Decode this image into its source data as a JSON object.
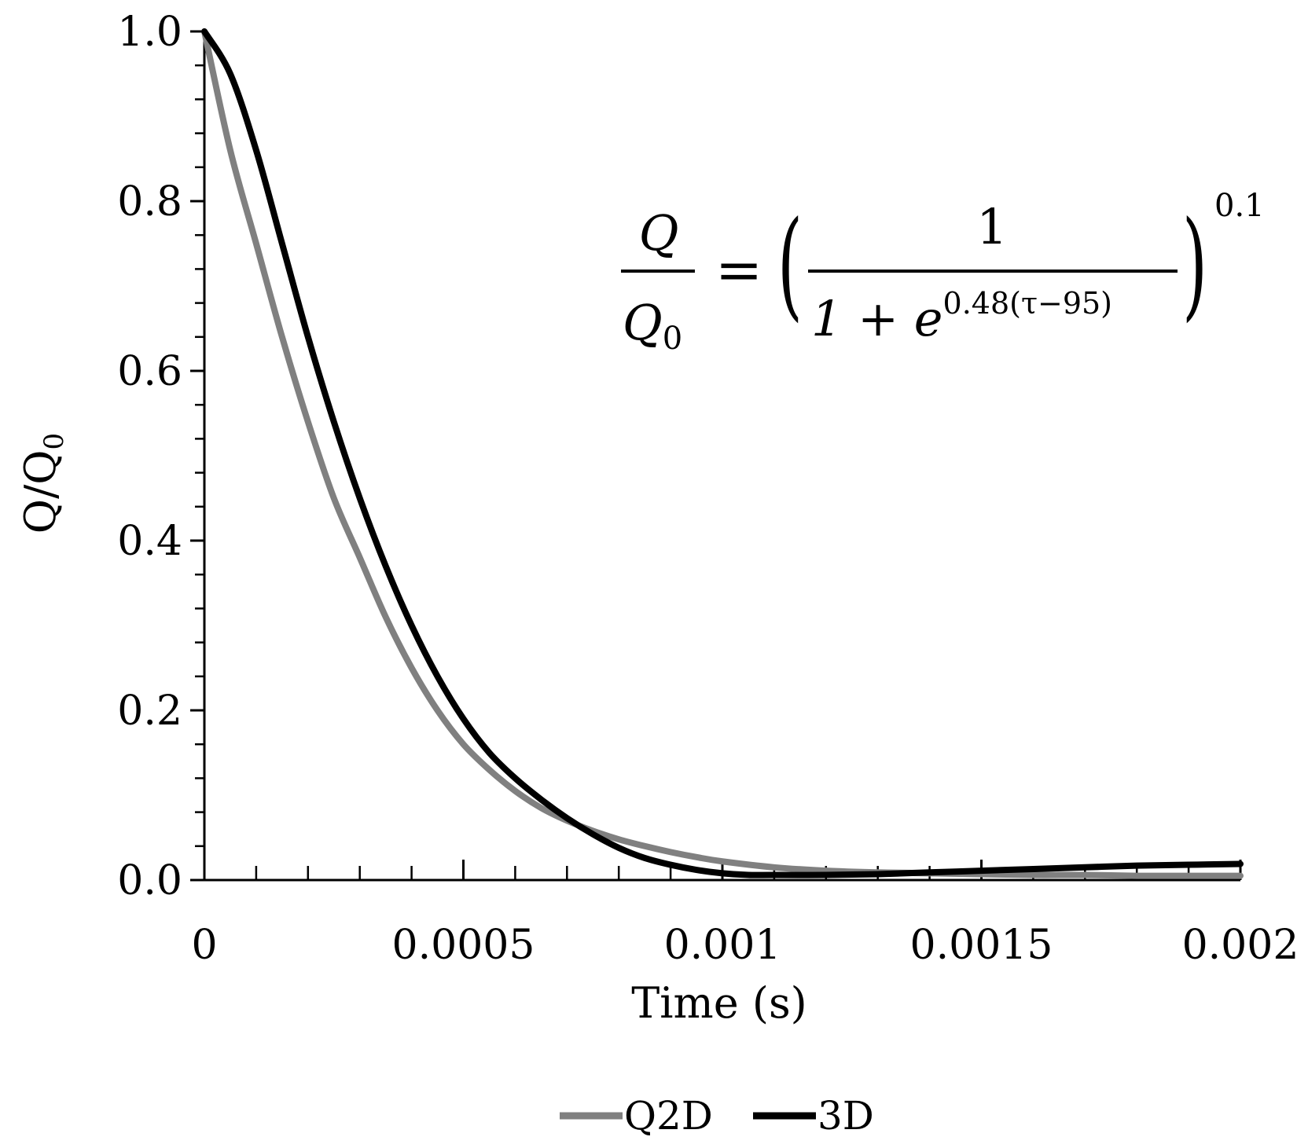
{
  "chart_data": {
    "type": "line",
    "xlabel": "Time (s)",
    "ylabel": "Q/Q",
    "ylabel_sub": "0",
    "xlim": [
      0,
      0.002
    ],
    "ylim": [
      0,
      1.0
    ],
    "x_ticks": [
      0,
      0.0005,
      0.001,
      0.0015,
      0.002
    ],
    "x_tick_labels": [
      "0",
      "0.0005",
      "0.001",
      "0.0015",
      "0.002"
    ],
    "y_ticks": [
      0,
      0.2,
      0.4,
      0.6,
      0.8,
      1.0
    ],
    "y_tick_labels": [
      "0.0",
      "0.2",
      "0.4",
      "0.6",
      "0.8",
      "1.0"
    ],
    "grid": false,
    "legend_position": "bottom",
    "equation": {
      "lhs_num": "Q",
      "lhs_den": "Q",
      "lhs_den_sub": "0",
      "equals": "=",
      "rhs_num": "1",
      "rhs_den_base": "1 + e",
      "rhs_den_exp": "0.48(τ−95)",
      "power": "0.1"
    },
    "series": [
      {
        "name": "Q2D",
        "color": "#808080",
        "x": [
          0,
          5e-05,
          0.0001,
          0.00015,
          0.0002,
          0.00025,
          0.0003,
          0.00035,
          0.0004,
          0.00045,
          0.0005,
          0.00055,
          0.0006,
          0.00065,
          0.0007,
          0.00075,
          0.0008,
          0.00085,
          0.0009,
          0.00095,
          0.001,
          0.0011,
          0.0012,
          0.0013,
          0.0014,
          0.0015,
          0.0016,
          0.0017,
          0.0018,
          0.0019,
          0.002
        ],
        "y": [
          1.0,
          0.86,
          0.75,
          0.64,
          0.54,
          0.45,
          0.38,
          0.31,
          0.25,
          0.2,
          0.16,
          0.13,
          0.105,
          0.085,
          0.07,
          0.058,
          0.048,
          0.04,
          0.033,
          0.027,
          0.022,
          0.015,
          0.011,
          0.009,
          0.008,
          0.007,
          0.006,
          0.006,
          0.005,
          0.005,
          0.005
        ]
      },
      {
        "name": "3D",
        "color": "#000000",
        "x": [
          0,
          5e-05,
          0.0001,
          0.00015,
          0.0002,
          0.00025,
          0.0003,
          0.00035,
          0.0004,
          0.00045,
          0.0005,
          0.00055,
          0.0006,
          0.00065,
          0.0007,
          0.00075,
          0.0008,
          0.00085,
          0.0009,
          0.00095,
          0.001,
          0.00105,
          0.0011,
          0.0012,
          0.0013,
          0.0014,
          0.0015,
          0.0016,
          0.0017,
          0.0018,
          0.0019,
          0.002
        ],
        "y": [
          1.0,
          0.95,
          0.86,
          0.75,
          0.64,
          0.54,
          0.45,
          0.37,
          0.3,
          0.24,
          0.19,
          0.15,
          0.12,
          0.095,
          0.073,
          0.054,
          0.038,
          0.026,
          0.018,
          0.012,
          0.008,
          0.006,
          0.006,
          0.006,
          0.007,
          0.009,
          0.011,
          0.013,
          0.015,
          0.017,
          0.018,
          0.019
        ]
      }
    ]
  }
}
